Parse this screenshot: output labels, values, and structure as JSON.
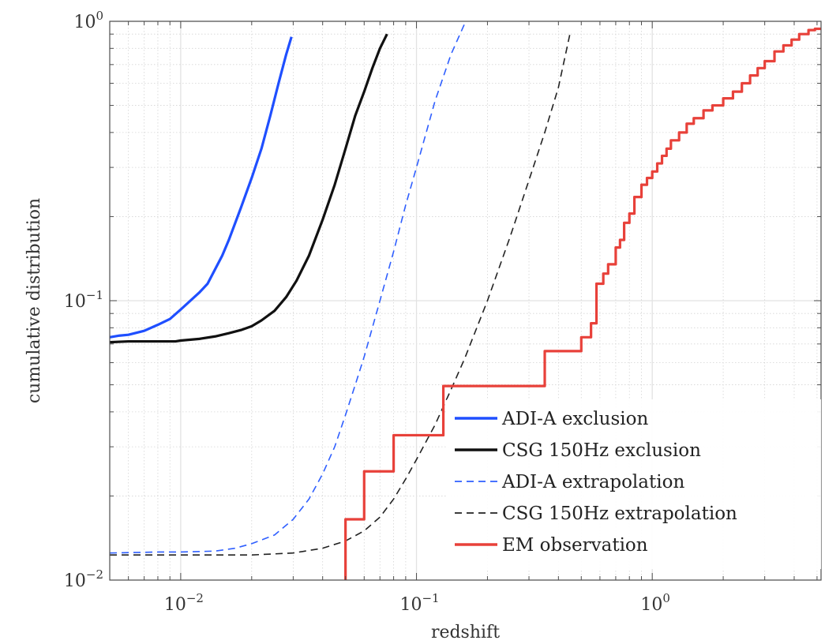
{
  "chart_data": {
    "type": "line",
    "xlabel": "redshift",
    "ylabel": "cumulative distribution",
    "xscale": "log",
    "yscale": "log",
    "xlim": [
      0.005,
      5.2
    ],
    "ylim": [
      0.01,
      1
    ],
    "x_ticks": [
      {
        "value": 0.01,
        "base": "10",
        "exp": "−2"
      },
      {
        "value": 0.1,
        "base": "10",
        "exp": "−1"
      },
      {
        "value": 1,
        "base": "10",
        "exp": "0"
      }
    ],
    "y_ticks": [
      {
        "value": 0.01,
        "base": "10",
        "exp": "−2"
      },
      {
        "value": 0.1,
        "base": "10",
        "exp": "−1"
      },
      {
        "value": 1,
        "base": "10",
        "exp": "0"
      }
    ],
    "grid": true,
    "legend_position": "bottom-right",
    "series": [
      {
        "name": "ADI-A exclusion",
        "color": "#1f4fff",
        "dash": "solid",
        "points": [
          [
            0.005,
            0.074
          ],
          [
            0.0055,
            0.075
          ],
          [
            0.006,
            0.0755
          ],
          [
            0.007,
            0.078
          ],
          [
            0.008,
            0.082
          ],
          [
            0.009,
            0.086
          ],
          [
            0.01,
            0.093
          ],
          [
            0.012,
            0.107
          ],
          [
            0.013,
            0.115
          ],
          [
            0.015,
            0.145
          ],
          [
            0.016,
            0.165
          ],
          [
            0.018,
            0.215
          ],
          [
            0.02,
            0.275
          ],
          [
            0.022,
            0.35
          ],
          [
            0.024,
            0.46
          ],
          [
            0.026,
            0.6
          ],
          [
            0.028,
            0.76
          ],
          [
            0.0295,
            0.88
          ]
        ]
      },
      {
        "name": "CSG 150Hz exclusion",
        "color": "#111111",
        "dash": "solid",
        "points": [
          [
            0.005,
            0.071
          ],
          [
            0.006,
            0.0715
          ],
          [
            0.008,
            0.0715
          ],
          [
            0.0095,
            0.0715
          ],
          [
            0.01,
            0.072
          ],
          [
            0.012,
            0.073
          ],
          [
            0.014,
            0.0745
          ],
          [
            0.016,
            0.0765
          ],
          [
            0.018,
            0.0785
          ],
          [
            0.02,
            0.081
          ],
          [
            0.022,
            0.085
          ],
          [
            0.025,
            0.092
          ],
          [
            0.028,
            0.103
          ],
          [
            0.031,
            0.118
          ],
          [
            0.035,
            0.145
          ],
          [
            0.04,
            0.195
          ],
          [
            0.045,
            0.26
          ],
          [
            0.05,
            0.35
          ],
          [
            0.055,
            0.46
          ],
          [
            0.06,
            0.56
          ],
          [
            0.065,
            0.68
          ],
          [
            0.07,
            0.8
          ],
          [
            0.075,
            0.9
          ]
        ]
      },
      {
        "name": "ADI-A extrapolation",
        "color": "#2f5fff",
        "dash": "dashed",
        "points": [
          [
            0.005,
            0.0125
          ],
          [
            0.008,
            0.0126
          ],
          [
            0.01,
            0.0126
          ],
          [
            0.014,
            0.0127
          ],
          [
            0.017,
            0.013
          ],
          [
            0.02,
            0.0135
          ],
          [
            0.025,
            0.0145
          ],
          [
            0.03,
            0.0165
          ],
          [
            0.035,
            0.0195
          ],
          [
            0.04,
            0.024
          ],
          [
            0.045,
            0.03
          ],
          [
            0.05,
            0.039
          ],
          [
            0.055,
            0.05
          ],
          [
            0.06,
            0.063
          ],
          [
            0.07,
            0.1
          ],
          [
            0.08,
            0.15
          ],
          [
            0.09,
            0.22
          ],
          [
            0.1,
            0.3
          ],
          [
            0.12,
            0.52
          ],
          [
            0.14,
            0.76
          ],
          [
            0.16,
            0.98
          ]
        ]
      },
      {
        "name": "CSG 150Hz extrapolation",
        "color": "#222222",
        "dash": "dashed",
        "points": [
          [
            0.005,
            0.0123
          ],
          [
            0.01,
            0.0123
          ],
          [
            0.02,
            0.0123
          ],
          [
            0.03,
            0.0125
          ],
          [
            0.04,
            0.013
          ],
          [
            0.05,
            0.0138
          ],
          [
            0.06,
            0.015
          ],
          [
            0.07,
            0.0168
          ],
          [
            0.08,
            0.0195
          ],
          [
            0.09,
            0.023
          ],
          [
            0.1,
            0.027
          ],
          [
            0.12,
            0.036
          ],
          [
            0.14,
            0.048
          ],
          [
            0.16,
            0.062
          ],
          [
            0.2,
            0.1
          ],
          [
            0.25,
            0.17
          ],
          [
            0.3,
            0.27
          ],
          [
            0.35,
            0.4
          ],
          [
            0.4,
            0.58
          ],
          [
            0.45,
            0.92
          ]
        ]
      },
      {
        "name": "EM observation",
        "color": "#e8413a",
        "dash": "solid",
        "step": true,
        "points": [
          [
            0.05,
            0.0095
          ],
          [
            0.05,
            0.0165
          ],
          [
            0.06,
            0.0165
          ],
          [
            0.06,
            0.0245
          ],
          [
            0.08,
            0.0245
          ],
          [
            0.08,
            0.033
          ],
          [
            0.13,
            0.033
          ],
          [
            0.13,
            0.0495
          ],
          [
            0.35,
            0.0495
          ],
          [
            0.35,
            0.066
          ],
          [
            0.5,
            0.066
          ],
          [
            0.5,
            0.074
          ],
          [
            0.55,
            0.074
          ],
          [
            0.55,
            0.083
          ],
          [
            0.58,
            0.083
          ],
          [
            0.58,
            0.115
          ],
          [
            0.62,
            0.115
          ],
          [
            0.62,
            0.125
          ],
          [
            0.65,
            0.125
          ],
          [
            0.65,
            0.135
          ],
          [
            0.7,
            0.135
          ],
          [
            0.7,
            0.155
          ],
          [
            0.73,
            0.155
          ],
          [
            0.73,
            0.165
          ],
          [
            0.76,
            0.165
          ],
          [
            0.76,
            0.19
          ],
          [
            0.8,
            0.19
          ],
          [
            0.8,
            0.205
          ],
          [
            0.84,
            0.205
          ],
          [
            0.84,
            0.235
          ],
          [
            0.9,
            0.235
          ],
          [
            0.9,
            0.26
          ],
          [
            0.95,
            0.26
          ],
          [
            0.95,
            0.275
          ],
          [
            1.0,
            0.275
          ],
          [
            1.0,
            0.29
          ],
          [
            1.05,
            0.29
          ],
          [
            1.05,
            0.31
          ],
          [
            1.1,
            0.31
          ],
          [
            1.1,
            0.33
          ],
          [
            1.15,
            0.33
          ],
          [
            1.15,
            0.35
          ],
          [
            1.2,
            0.35
          ],
          [
            1.2,
            0.375
          ],
          [
            1.3,
            0.375
          ],
          [
            1.3,
            0.4
          ],
          [
            1.4,
            0.4
          ],
          [
            1.4,
            0.43
          ],
          [
            1.5,
            0.43
          ],
          [
            1.5,
            0.45
          ],
          [
            1.65,
            0.45
          ],
          [
            1.65,
            0.48
          ],
          [
            1.8,
            0.48
          ],
          [
            1.8,
            0.5
          ],
          [
            2.0,
            0.5
          ],
          [
            2.0,
            0.53
          ],
          [
            2.2,
            0.53
          ],
          [
            2.2,
            0.56
          ],
          [
            2.4,
            0.56
          ],
          [
            2.4,
            0.6
          ],
          [
            2.6,
            0.6
          ],
          [
            2.6,
            0.64
          ],
          [
            2.8,
            0.64
          ],
          [
            2.8,
            0.68
          ],
          [
            3.0,
            0.68
          ],
          [
            3.0,
            0.72
          ],
          [
            3.3,
            0.72
          ],
          [
            3.3,
            0.78
          ],
          [
            3.6,
            0.78
          ],
          [
            3.6,
            0.82
          ],
          [
            3.9,
            0.82
          ],
          [
            3.9,
            0.86
          ],
          [
            4.2,
            0.86
          ],
          [
            4.2,
            0.9
          ],
          [
            4.6,
            0.9
          ],
          [
            4.6,
            0.93
          ],
          [
            4.9,
            0.93
          ],
          [
            4.9,
            0.94
          ],
          [
            5.2,
            0.94
          ]
        ]
      }
    ]
  }
}
